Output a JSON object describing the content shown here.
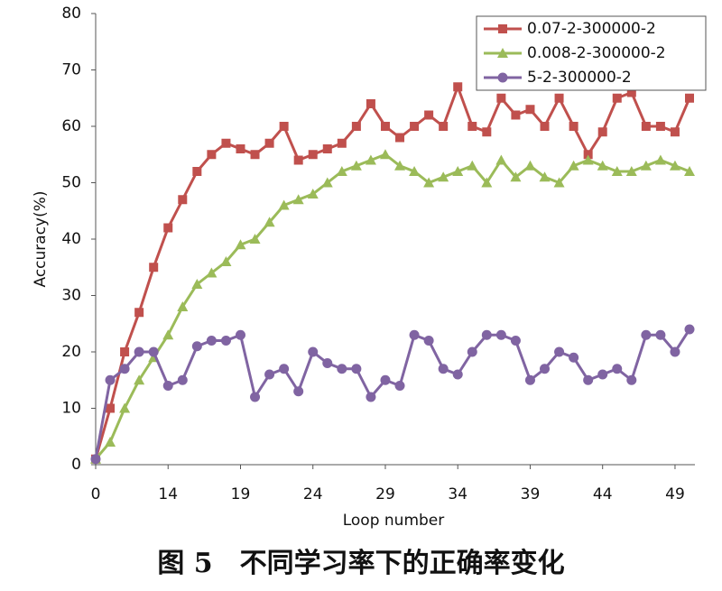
{
  "chart_data": {
    "type": "line",
    "x_label": "Loop number",
    "y_label": "Accuracy(%)",
    "caption": "图 5　不同学习率下的正确率变化",
    "categories": [
      0,
      null,
      null,
      null,
      null,
      14,
      null,
      null,
      null,
      null,
      19,
      null,
      null,
      null,
      null,
      24,
      null,
      null,
      null,
      null,
      29,
      null,
      null,
      null,
      null,
      34,
      null,
      null,
      null,
      null,
      39,
      null,
      null,
      null,
      null,
      44,
      null,
      null,
      null,
      null,
      49,
      null
    ],
    "series": [
      {
        "name": "0.07-2-300000-2",
        "color": "#c0504d",
        "marker": "square",
        "values": [
          1,
          10,
          20,
          27,
          35,
          42,
          47,
          52,
          55,
          57,
          56,
          55,
          57,
          60,
          54,
          55,
          56,
          57,
          60,
          64,
          60,
          58,
          60,
          62,
          60,
          67,
          60,
          59,
          65,
          62,
          63,
          60,
          65,
          60,
          55,
          59,
          65,
          66,
          60,
          60,
          59,
          65
        ]
      },
      {
        "name": "0.008-2-300000-2",
        "color": "#9bbb59",
        "marker": "triangle",
        "values": [
          1,
          4,
          10,
          15,
          19,
          23,
          28,
          32,
          34,
          36,
          39,
          40,
          43,
          46,
          47,
          48,
          50,
          52,
          53,
          54,
          55,
          53,
          52,
          50,
          51,
          52,
          53,
          50,
          54,
          51,
          53,
          51,
          50,
          53,
          54,
          53,
          52,
          52,
          53,
          54,
          53,
          52
        ]
      },
      {
        "name": "5-2-300000-2",
        "color": "#8064a2",
        "marker": "circle",
        "values": [
          1,
          15,
          17,
          20,
          20,
          14,
          15,
          21,
          22,
          22,
          23,
          12,
          16,
          17,
          13,
          20,
          18,
          17,
          17,
          12,
          15,
          14,
          23,
          22,
          17,
          16,
          20,
          23,
          23,
          22,
          15,
          17,
          20,
          19,
          15,
          16,
          17,
          15,
          23,
          23,
          20,
          24
        ]
      }
    ],
    "ylim": [
      0,
      80
    ],
    "yticks": [
      0,
      10,
      20,
      30,
      40,
      50,
      60,
      70,
      80
    ],
    "legend": "upper right"
  }
}
